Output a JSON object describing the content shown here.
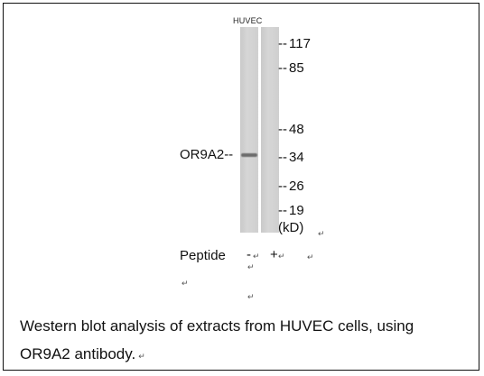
{
  "figure": {
    "sample_label": "HUVEC",
    "protein_label": "OR9A2--",
    "markers": [
      {
        "label": "117"
      },
      {
        "label": "85"
      },
      {
        "label": "48"
      },
      {
        "label": "34"
      },
      {
        "label": "26"
      },
      {
        "label": "19"
      }
    ],
    "marker_dash": "--",
    "unit": "(kD)",
    "peptide_label": "Peptide",
    "peptide_minus": "-",
    "peptide_plus": "+",
    "return_mark": "↵"
  },
  "caption": {
    "line1": "Western blot analysis of extracts from HUVEC cells, using",
    "line2": "OR9A2 antibody."
  }
}
